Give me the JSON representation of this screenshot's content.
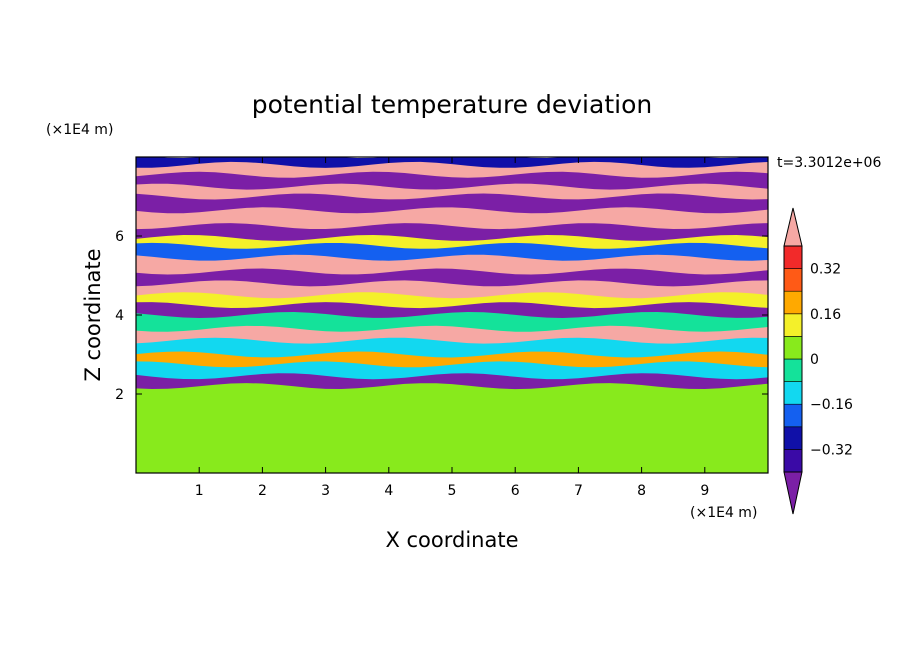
{
  "chart_data": {
    "type": "heatmap",
    "title": "potential temperature deviation",
    "xlabel": "X coordinate",
    "ylabel": "Z coordinate",
    "x_scale_note": "(×1E4 m)",
    "y_scale_note": "(×1E4 m)",
    "time_label": "t=3.3012e+06",
    "xlim": [
      0,
      10
    ],
    "ylim": [
      0,
      8
    ],
    "x_ticks": [
      1,
      2,
      3,
      4,
      5,
      6,
      7,
      8,
      9
    ],
    "y_ticks": [
      2,
      4,
      6
    ],
    "x_tick_labels": [
      "1",
      "2",
      "3",
      "4",
      "5",
      "6",
      "7",
      "8",
      "9"
    ],
    "y_tick_labels": [
      "2",
      "4",
      "6"
    ],
    "colorbar": {
      "levels": [
        -0.4,
        -0.32,
        -0.24,
        -0.16,
        -0.08,
        0,
        0.08,
        0.16,
        0.24,
        0.32,
        0.4
      ],
      "tick_labels": [
        "0.32",
        "0.16",
        "0",
        "−0.16",
        "−0.32"
      ],
      "tick_values": [
        0.32,
        0.16,
        0,
        -0.16,
        -0.32
      ],
      "colors": [
        "#7b1fa6",
        "#3a0aa6",
        "#1010a8",
        "#1460f0",
        "#12d8f0",
        "#14e29a",
        "#88ea1c",
        "#f4f02a",
        "#ffa900",
        "#ff5a16",
        "#f22a2a",
        "#f6a8a4"
      ],
      "extend": "both"
    },
    "bands": [
      {
        "z0": 7.75,
        "z1": 8.0,
        "value": -0.3
      },
      {
        "z0": 7.5,
        "z1": 7.75,
        "value": 0.42
      },
      {
        "z0": 7.2,
        "z1": 7.5,
        "value": -0.42
      },
      {
        "z0": 6.95,
        "z1": 7.2,
        "value": 0.42
      },
      {
        "z0": 6.6,
        "z1": 6.95,
        "value": -0.42
      },
      {
        "z0": 6.2,
        "z1": 6.6,
        "value": 0.42
      },
      {
        "z0": 5.9,
        "z1": 6.2,
        "value": -0.42
      },
      {
        "z0": 5.7,
        "z1": 5.9,
        "value": 0.1
      },
      {
        "z0": 5.4,
        "z1": 5.7,
        "value": -0.2
      },
      {
        "z0": 5.05,
        "z1": 5.4,
        "value": 0.42
      },
      {
        "z0": 4.75,
        "z1": 5.05,
        "value": -0.42
      },
      {
        "z0": 4.45,
        "z1": 4.75,
        "value": 0.42
      },
      {
        "z0": 4.2,
        "z1": 4.45,
        "value": 0.1
      },
      {
        "z0": 3.95,
        "z1": 4.2,
        "value": -0.42
      },
      {
        "z0": 3.6,
        "z1": 3.95,
        "value": -0.05
      },
      {
        "z0": 3.3,
        "z1": 3.6,
        "value": 0.42
      },
      {
        "z0": 2.95,
        "z1": 3.3,
        "value": -0.1
      },
      {
        "z0": 2.7,
        "z1": 2.95,
        "value": 0.2
      },
      {
        "z0": 2.4,
        "z1": 2.7,
        "value": -0.1
      },
      {
        "z0": 2.15,
        "z1": 2.4,
        "value": -0.42
      },
      {
        "z0": 1.6,
        "z1": 2.15,
        "value": 0.02
      },
      {
        "z0": 0.0,
        "z1": 1.6,
        "value": 0.06
      }
    ]
  }
}
